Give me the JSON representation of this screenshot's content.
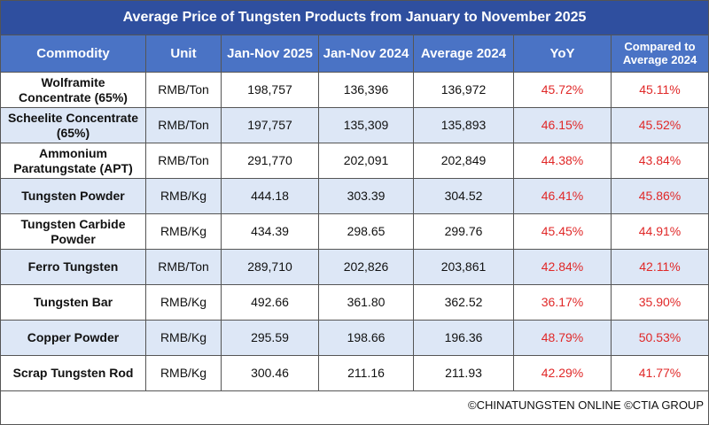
{
  "title": "Average Price of Tungsten Products from January to November 2025",
  "table": {
    "header": [
      "Commodity",
      "Unit",
      "Jan-Nov 2025",
      "Jan-Nov 2024",
      "Average 2024",
      "YoY",
      "Compared to Average 2024"
    ],
    "rows": [
      [
        "Wolframite Concentrate (65%)",
        "RMB/Ton",
        "198,757",
        "136,396",
        "136,972",
        "45.72%",
        "45.11%"
      ],
      [
        "Scheelite Concentrate (65%)",
        "RMB/Ton",
        "197,757",
        "135,309",
        "135,893",
        "46.15%",
        "45.52%"
      ],
      [
        "Ammonium Paratungstate (APT)",
        "RMB/Ton",
        "291,770",
        "202,091",
        "202,849",
        "44.38%",
        "43.84%"
      ],
      [
        "Tungsten Powder",
        "RMB/Kg",
        "444.18",
        "303.39",
        "304.52",
        "46.41%",
        "45.86%"
      ],
      [
        "Tungsten Carbide Powder",
        "RMB/Kg",
        "434.39",
        "298.65",
        "299.76",
        "45.45%",
        "44.91%"
      ],
      [
        "Ferro Tungsten",
        "RMB/Ton",
        "289,710",
        "202,826",
        "203,861",
        "42.84%",
        "42.11%"
      ],
      [
        "Tungsten Bar",
        "RMB/Kg",
        "492.66",
        "361.80",
        "362.52",
        "36.17%",
        "35.90%"
      ],
      [
        "Copper Powder",
        "RMB/Kg",
        "295.59",
        "198.66",
        "196.36",
        "48.79%",
        "50.53%"
      ],
      [
        "Scrap Tungsten Rod",
        "RMB/Kg",
        "300.46",
        "211.16",
        "211.93",
        "42.29%",
        "41.77%"
      ]
    ]
  },
  "footer": "©CHINATUNGSTEN ONLINE ©CTIA GROUP"
}
